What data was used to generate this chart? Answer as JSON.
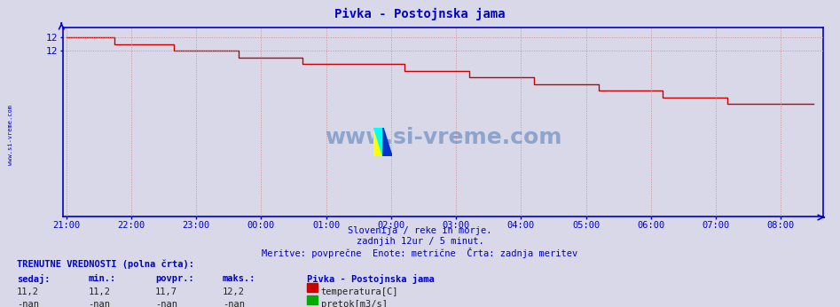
{
  "title": "Pivka - Postojnska jama",
  "title_color": "#0000cc",
  "bg_color": "#d8d8e8",
  "plot_bg_color": "#d8d8e8",
  "line_color": "#cc0000",
  "axis_color": "#0000cc",
  "grid_color": "#cc8888",
  "tick_color": "#0000cc",
  "watermark_text": "www.si-vreme.com",
  "watermark_color": "#3366aa",
  "subtitle1": "Slovenija / reke in morje.",
  "subtitle2": "zadnjih 12ur / 5 minut.",
  "subtitle3": "Meritve: povprečne  Enote: metrične  Črta: zadnja meritev",
  "subtitle_color": "#0000cc",
  "left_label": "www.si-vreme.com",
  "left_label_color": "#0000cc",
  "legend_title": "TRENUTNE VREDNOSTI (polna črta):",
  "legend_cols": [
    "sedaj:",
    "min.:",
    "povpr.:",
    "maks.:"
  ],
  "legend_col_color": "#0000cc",
  "legend_station": "Pivka - Postojnska jama",
  "legend_row1": [
    "11,2",
    "11,2",
    "11,7",
    "12,2"
  ],
  "legend_row2": [
    "-nan",
    "-nan",
    "-nan",
    "-nan"
  ],
  "legend_label1": "temperatura[C]",
  "legend_label2": "pretok[m3/s]",
  "legend_color1": "#cc0000",
  "legend_color2": "#00aa00",
  "x_ticks_labels": [
    "21:00",
    "22:00",
    "23:00",
    "00:00",
    "01:00",
    "02:00",
    "03:00",
    "04:00",
    "05:00",
    "06:00",
    "07:00",
    "08:00"
  ],
  "ylim_min": 9.5,
  "ylim_max": 12.35,
  "y_ticks": [
    12.0,
    12.2
  ],
  "y_tick_labels": [
    "12",
    "12"
  ],
  "temp_data": [
    12.2,
    12.2,
    12.2,
    12.2,
    12.2,
    12.2,
    12.2,
    12.2,
    12.2,
    12.1,
    12.1,
    12.1,
    12.1,
    12.1,
    12.1,
    12.1,
    12.1,
    12.1,
    12.1,
    12.1,
    12.0,
    12.0,
    12.0,
    12.0,
    12.0,
    12.0,
    12.0,
    12.0,
    12.0,
    12.0,
    12.0,
    12.0,
    11.9,
    11.9,
    11.9,
    11.9,
    11.9,
    11.9,
    11.9,
    11.9,
    11.9,
    11.9,
    11.9,
    11.9,
    11.8,
    11.8,
    11.8,
    11.8,
    11.8,
    11.8,
    11.8,
    11.8,
    11.8,
    11.8,
    11.8,
    11.8,
    11.8,
    11.8,
    11.8,
    11.8,
    11.8,
    11.8,
    11.8,
    11.7,
    11.7,
    11.7,
    11.7,
    11.7,
    11.7,
    11.7,
    11.7,
    11.7,
    11.7,
    11.7,
    11.7,
    11.6,
    11.6,
    11.6,
    11.6,
    11.6,
    11.6,
    11.6,
    11.6,
    11.6,
    11.6,
    11.6,
    11.6,
    11.5,
    11.5,
    11.5,
    11.5,
    11.5,
    11.5,
    11.5,
    11.5,
    11.5,
    11.5,
    11.5,
    11.5,
    11.4,
    11.4,
    11.4,
    11.4,
    11.4,
    11.4,
    11.4,
    11.4,
    11.4,
    11.4,
    11.4,
    11.4,
    11.3,
    11.3,
    11.3,
    11.3,
    11.3,
    11.3,
    11.3,
    11.3,
    11.3,
    11.3,
    11.3,
    11.3,
    11.2,
    11.2,
    11.2,
    11.2,
    11.2,
    11.2,
    11.2,
    11.2,
    11.2,
    11.2,
    11.2,
    11.2,
    11.2,
    11.2,
    11.2,
    11.2,
    11.2
  ]
}
